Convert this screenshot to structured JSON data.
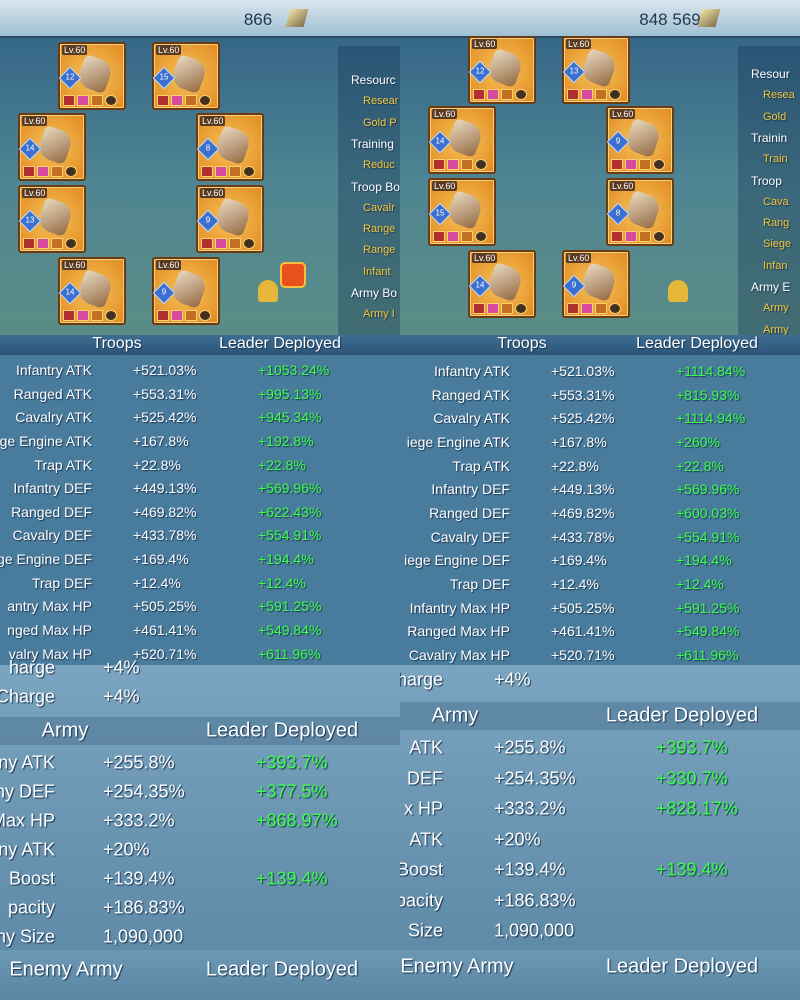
{
  "panels": [
    {
      "power": "866",
      "equipment": [
        {
          "level": "Lv.60",
          "stars": 12
        },
        {
          "level": "Lv.60",
          "stars": 15
        },
        {
          "level": "Lv.60",
          "stars": 14
        },
        {
          "level": "Lv.60",
          "stars": 8
        },
        {
          "level": "Lv.60",
          "stars": 13
        },
        {
          "level": "Lv.60",
          "stars": 9
        },
        {
          "level": "Lv.60",
          "stars": 14
        },
        {
          "level": "Lv.60",
          "stars": 9
        }
      ],
      "menu": [
        {
          "title": "Resourc",
          "items": [
            "Resear",
            "Gold P"
          ]
        },
        {
          "title": "Training",
          "items": [
            "Reduc"
          ]
        },
        {
          "title": "Troop Bo",
          "items": [
            "Cavalr",
            "Range",
            "Range",
            "Infant"
          ]
        },
        {
          "title": "Army Bo",
          "items": [
            "Army I"
          ]
        }
      ],
      "troops": {
        "header": [
          "Troops",
          "Leader Deployed"
        ],
        "rows": [
          [
            "Infantry ATK",
            "+521.03%",
            "+1053.24%"
          ],
          [
            "Ranged ATK",
            "+553.31%",
            "+995.13%"
          ],
          [
            "Cavalry ATK",
            "+525.42%",
            "+945.34%"
          ],
          [
            "ge Engine ATK",
            "+167.8%",
            "+192.8%"
          ],
          [
            "Trap ATK",
            "+22.8%",
            "+22.8%"
          ],
          [
            "Infantry DEF",
            "+449.13%",
            "+569.96%"
          ],
          [
            "Ranged DEF",
            "+469.82%",
            "+622.43%"
          ],
          [
            "Cavalry DEF",
            "+433.78%",
            "+554.91%"
          ],
          [
            "ge Engine DEF",
            "+169.4%",
            "+194.4%"
          ],
          [
            "Trap DEF",
            "+12.4%",
            "+12.4%"
          ],
          [
            "antry Max HP",
            "+505.25%",
            "+591.25%"
          ],
          [
            "nged Max HP",
            "+461.41%",
            "+549.84%"
          ],
          [
            "valry Max HP",
            "+520.71%",
            "+611.96%"
          ]
        ]
      },
      "charge": [
        [
          "harge",
          "+4%"
        ],
        [
          "Charge",
          "+4%"
        ]
      ],
      "army": {
        "header": [
          "Army",
          "Leader Deployed"
        ],
        "rows": [
          [
            "ny ATK",
            "+255.8%",
            "+393.7%"
          ],
          [
            "ny DEF",
            "+254.35%",
            "+377.5%"
          ],
          [
            "Max HP",
            "+333.2%",
            "+868.97%"
          ],
          [
            "ny ATK",
            "+20%"
          ],
          [
            "Boost",
            "+139.4%",
            "+139.4%"
          ],
          [
            "pacity",
            "+186.83%"
          ],
          [
            "ny Size",
            "1,090,000"
          ]
        ]
      },
      "enemy": {
        "header": [
          "Enemy Army",
          "Leader Deployed"
        ]
      }
    },
    {
      "power": "848 569",
      "equipment": [
        {
          "level": "Lv.60",
          "stars": 12
        },
        {
          "level": "Lv.60",
          "stars": 13
        },
        {
          "level": "Lv.60",
          "stars": 14
        },
        {
          "level": "Lv.60",
          "stars": 9
        },
        {
          "level": "Lv.60",
          "stars": 15
        },
        {
          "level": "Lv.60",
          "stars": 8
        },
        {
          "level": "Lv.60",
          "stars": 14
        },
        {
          "level": "Lv.60",
          "stars": 9
        }
      ],
      "menu": [
        {
          "title": "Resour",
          "items": [
            "Resea",
            "Gold"
          ]
        },
        {
          "title": "Trainin",
          "items": [
            "Train"
          ]
        },
        {
          "title": "Troop",
          "items": [
            "Cava",
            "Rang",
            "Siege",
            "Infan"
          ]
        },
        {
          "title": "Army E",
          "items": [
            "Army",
            "Army"
          ]
        }
      ],
      "troops": {
        "header": [
          "Troops",
          "Leader Deployed"
        ],
        "rows": [
          [
            "Infantry ATK",
            "+521.03%",
            "+1114.84%"
          ],
          [
            "Ranged ATK",
            "+553.31%",
            "+815.93%"
          ],
          [
            "Cavalry ATK",
            "+525.42%",
            "+1114.94%"
          ],
          [
            "iege Engine ATK",
            "+167.8%",
            "+260%"
          ],
          [
            "Trap ATK",
            "+22.8%",
            "+22.8%"
          ],
          [
            "Infantry DEF",
            "+449.13%",
            "+569.96%"
          ],
          [
            "Ranged DEF",
            "+469.82%",
            "+600.03%"
          ],
          [
            "Cavalry DEF",
            "+433.78%",
            "+554.91%"
          ],
          [
            "iege Engine DEF",
            "+169.4%",
            "+194.4%"
          ],
          [
            "Trap DEF",
            "+12.4%",
            "+12.4%"
          ],
          [
            "Infantry Max HP",
            "+505.25%",
            "+591.25%"
          ],
          [
            "Ranged Max HP",
            "+461.41%",
            "+549.84%"
          ],
          [
            "Cavalry Max HP",
            "+520.71%",
            "+611.96%"
          ]
        ]
      },
      "charge": [
        [
          "harge",
          "+4%"
        ]
      ],
      "army": {
        "header": [
          "Army",
          "Leader Deployed"
        ],
        "rows": [
          [
            "ATK",
            "+255.8%",
            "+393.7%"
          ],
          [
            "DEF",
            "+254.35%",
            "+330.7%"
          ],
          [
            "x HP",
            "+333.2%",
            "+828.17%"
          ],
          [
            "ATK",
            "+20%"
          ],
          [
            "Boost",
            "+139.4%",
            "+139.4%"
          ],
          [
            "pacity",
            "+186.83%"
          ],
          [
            "Size",
            "1,090,000"
          ]
        ]
      },
      "enemy": {
        "header": [
          "Enemy Army",
          "Leader Deployed"
        ]
      }
    }
  ]
}
